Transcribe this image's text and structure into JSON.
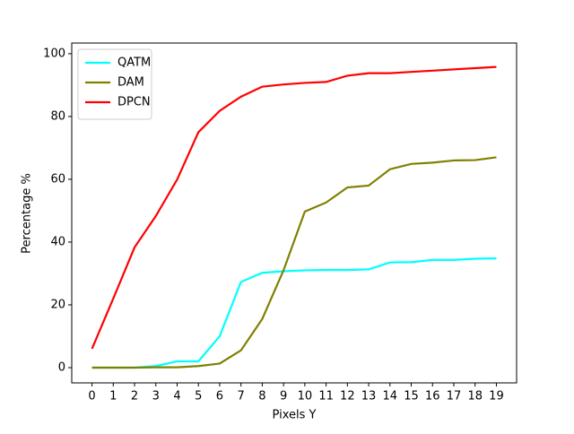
{
  "chart_data": {
    "type": "line",
    "x_label": "Pixels Y",
    "y_label": "Percentage %",
    "x": [
      0,
      1,
      2,
      3,
      4,
      5,
      6,
      7,
      8,
      9,
      10,
      11,
      12,
      13,
      14,
      15,
      16,
      17,
      18,
      19
    ],
    "series": [
      {
        "name": "QATM",
        "color": "#00ffff",
        "values": [
          0,
          0,
          0,
          0.5,
          2,
          2,
          10,
          27.3,
          30.2,
          30.7,
          31,
          31.1,
          31.1,
          31.3,
          33.5,
          33.6,
          34.3,
          34.3,
          34.7,
          34.8
        ]
      },
      {
        "name": "DAM",
        "color": "#808000",
        "values": [
          0,
          0,
          0,
          0.1,
          0.1,
          0.5,
          1.3,
          5.5,
          15.5,
          31,
          49.7,
          52.6,
          57.4,
          58,
          63.2,
          64.9,
          65.3,
          66,
          66.1,
          67
        ]
      },
      {
        "name": "DPCN",
        "color": "#ff0000",
        "values": [
          6,
          22,
          38.3,
          48.3,
          59.9,
          75,
          81.8,
          86.3,
          89.5,
          90.2,
          90.7,
          91,
          93,
          93.8,
          93.8,
          94.2,
          94.6,
          95,
          95.4,
          95.8
        ]
      }
    ],
    "xlim": [
      -0.95,
      19.95
    ],
    "ylim": [
      -4.86,
      103.4
    ],
    "xticks": [
      0,
      1,
      2,
      3,
      4,
      5,
      6,
      7,
      8,
      9,
      10,
      11,
      12,
      13,
      14,
      15,
      16,
      17,
      18,
      19
    ],
    "yticks": [
      0,
      20,
      40,
      60,
      80,
      100
    ],
    "legend": "upper left",
    "grid": false
  }
}
